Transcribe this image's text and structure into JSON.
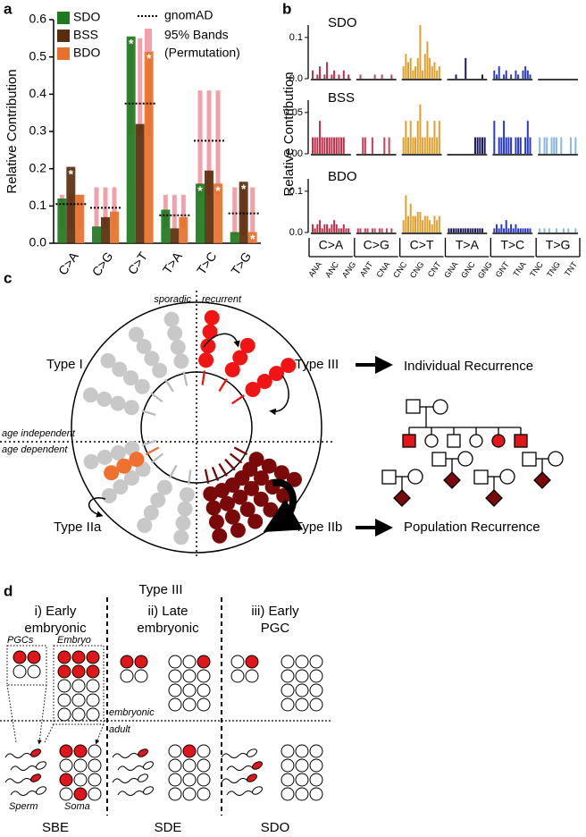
{
  "chart_data": [
    {
      "type": "bar",
      "panel": "a",
      "ylabel": "Relative Contribution",
      "categories": [
        "C>A",
        "C>G",
        "C>T",
        "T>A",
        "T>C",
        "T>G"
      ],
      "series": [
        {
          "name": "SDO",
          "color": "#1e7a1e",
          "values": [
            0.12,
            0.045,
            0.555,
            0.09,
            0.16,
            0.03
          ],
          "significance": [
            null,
            null,
            "*",
            null,
            "*",
            null
          ]
        },
        {
          "name": "BSS",
          "color": "#5a2d0c",
          "values": [
            0.205,
            0.07,
            0.32,
            0.04,
            0.195,
            0.165
          ],
          "significance": [
            "*",
            null,
            null,
            null,
            null,
            "*"
          ]
        },
        {
          "name": "BDO",
          "color": "#e8702a",
          "values": [
            0.13,
            0.085,
            0.515,
            0.07,
            0.16,
            0.03
          ],
          "significance": [
            null,
            null,
            "*",
            null,
            "*",
            "*"
          ]
        }
      ],
      "reference": {
        "name": "gnomAD",
        "values": [
          0.105,
          0.095,
          0.375,
          0.075,
          0.275,
          0.08
        ]
      },
      "bands": {
        "name_lines": [
          "95% Bands",
          "(Permutation)"
        ],
        "color": "#f4a0aa",
        "low": [
          0.04,
          0.04,
          0.29,
          0.04,
          0.13,
          0.02
        ],
        "high": [
          0.13,
          0.15,
          0.55,
          0.13,
          0.41,
          0.15
        ]
      },
      "ylim": [
        0,
        0.6
      ],
      "yticks": [
        {
          "value": 0,
          "label": "0.0"
        },
        0.1,
        0.2,
        0.3,
        0.4,
        0.5,
        0.6
      ]
    },
    {
      "type": "spectrum",
      "panel": "b",
      "ylabel": "Relative Contribution",
      "groups": [
        {
          "name": "C>A",
          "color": "#c0304a"
        },
        {
          "name": "C>G",
          "color": "#d0405a"
        },
        {
          "name": "C>T",
          "color": "#e0a030"
        },
        {
          "name": "T>A",
          "color": "#1a1a5a"
        },
        {
          "name": "T>C",
          "color": "#2a3ad0"
        },
        {
          "name": "T>G",
          "color": "#8ab8e0"
        }
      ],
      "xticklabels": [
        "ANA",
        "ANC",
        "ANG",
        "ANT",
        "CNA",
        "CNC",
        "CNG",
        "CNT",
        "GNA",
        "GNC",
        "GNG",
        "GNT",
        "TNA",
        "TNC",
        "TNG",
        "TNT"
      ],
      "subplots": [
        {
          "title": "SDO",
          "ylim": [
            0,
            0.13
          ],
          "yticks": [
            {
              "value": 0,
              "label": "0.0"
            },
            0.1
          ],
          "values": [
            [
              0.02,
              0,
              0.01,
              0.03,
              0,
              0.01,
              0.04,
              0,
              0.01,
              0.02,
              0,
              0.01,
              0,
              0.02,
              0,
              0.01
            ],
            [
              0,
              0.01,
              0,
              0,
              0,
              0,
              0,
              0.01,
              0,
              0,
              0.01,
              0,
              0,
              0,
              0.01,
              0
            ],
            [
              0.03,
              0.06,
              0.04,
              0.05,
              0.02,
              0.03,
              0.05,
              0.13,
              0.02,
              0.06,
              0.09,
              0.05,
              0.03,
              0.04,
              0.02,
              0.03
            ],
            [
              0,
              0,
              0,
              0.01,
              0,
              0,
              0,
              0.05,
              0,
              0,
              0,
              0,
              0,
              0,
              0.01,
              0
            ],
            [
              0.02,
              0.01,
              0.03,
              0,
              0.01,
              0.02,
              0,
              0.01,
              0,
              0.02,
              0.01,
              0,
              0.02,
              0.03,
              0.02,
              0.01
            ],
            [
              0,
              0,
              0,
              0,
              0,
              0,
              0,
              0,
              0,
              0,
              0,
              0,
              0,
              0,
              0,
              0
            ]
          ]
        },
        {
          "title": "BSS",
          "ylim": [
            0,
            0.065
          ],
          "yticks": [
            {
              "value": 0,
              "label": "0.00"
            },
            0.05
          ],
          "values": [
            [
              0.02,
              0.02,
              0.02,
              0.04,
              0.02,
              0.02,
              0.02,
              0.02,
              0.02,
              0.02,
              0.02,
              0.02,
              0.02,
              0.02,
              0,
              0
            ],
            [
              0,
              0,
              0.02,
              0.02,
              0,
              0,
              0.02,
              0,
              0,
              0,
              0,
              0.02,
              0,
              0.02,
              0,
              0
            ],
            [
              0.02,
              0.04,
              0.02,
              0.04,
              0.02,
              0.02,
              0.04,
              0.06,
              0.02,
              0.02,
              0.04,
              0.02,
              0.02,
              0.04,
              0.02,
              0.04
            ],
            [
              0,
              0,
              0,
              0,
              0,
              0,
              0,
              0,
              0,
              0,
              0,
              0.02,
              0.02,
              0.02,
              0.02,
              0.02
            ],
            [
              0.04,
              0,
              0.02,
              0.02,
              0.04,
              0.02,
              0.02,
              0.02,
              0,
              0.02,
              0.02,
              0.02,
              0,
              0.02,
              0.04,
              0.02
            ],
            [
              0.02,
              0,
              0.02,
              0.02,
              0,
              0.02,
              0.02,
              0.02,
              0,
              0.02,
              0,
              0,
              0,
              0.02,
              0,
              0.02
            ]
          ]
        },
        {
          "title": "BDO",
          "ylim": [
            0,
            0.13
          ],
          "yticks": [
            {
              "value": 0,
              "label": "0.0"
            },
            0.1
          ],
          "values": [
            [
              0.02,
              0.01,
              0.02,
              0.03,
              0.01,
              0.02,
              0.02,
              0.01,
              0.02,
              0.03,
              0.02,
              0.01,
              0.01,
              0.02,
              0.01,
              0.01
            ],
            [
              0.01,
              0.01,
              0,
              0.01,
              0.01,
              0,
              0.01,
              0.01,
              0,
              0.01,
              0.01,
              0,
              0.01,
              0,
              0.01,
              0
            ],
            [
              0.03,
              0.09,
              0.04,
              0.07,
              0.04,
              0.04,
              0.05,
              0.05,
              0.03,
              0.04,
              0.04,
              0.03,
              0.02,
              0.04,
              0.03,
              0.04
            ],
            [
              0.01,
              0.01,
              0.01,
              0.01,
              0.01,
              0.01,
              0.01,
              0.01,
              0.01,
              0.01,
              0.01,
              0.01,
              0.01,
              0.01,
              0.01,
              0
            ],
            [
              0.01,
              0.02,
              0.01,
              0.02,
              0.01,
              0.03,
              0.01,
              0.02,
              0.01,
              0.02,
              0.01,
              0.01,
              0.01,
              0.01,
              0.01,
              0.01
            ],
            [
              0.01,
              0,
              0.01,
              0,
              0.01,
              0,
              0,
              0.01,
              0,
              0,
              0.01,
              0,
              0.01,
              0,
              0,
              0.01
            ]
          ]
        }
      ]
    }
  ],
  "diagram_c": {
    "panel": "c",
    "sporadic": "sporadic",
    "recurrent": "recurrent",
    "type_i": "Type I",
    "type_iii": "Type III",
    "age_independent": "age independent",
    "age_dependent": "age dependent",
    "type_iia": "Type IIa",
    "type_iib": "Type IIb",
    "individual": "Individual Recurrence",
    "population": "Population Recurrence"
  },
  "diagram_d": {
    "panel": "d",
    "header": "Type III",
    "columns": [
      {
        "title": [
          "i) Early",
          "embryonic"
        ],
        "label": "SBE"
      },
      {
        "title": [
          "ii) Late",
          "embryonic"
        ],
        "label": "SDE"
      },
      {
        "title": [
          "iii) Early",
          "PGC"
        ],
        "label": "SDO"
      }
    ],
    "box_labels": [
      "PGCs",
      "Embryo"
    ],
    "stage_labels": [
      "embryonic",
      "adult"
    ],
    "cell_labels": [
      "Sperm",
      "Soma"
    ]
  }
}
